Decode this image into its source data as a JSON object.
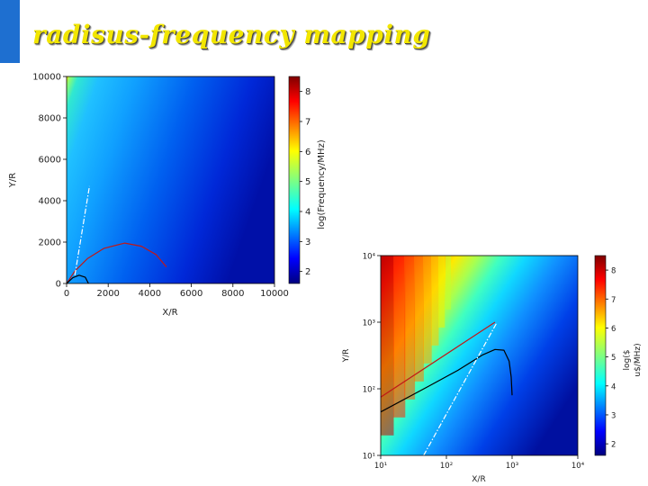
{
  "slide": {
    "title": "radisus-frequency mapping",
    "title_color": "#f2e600",
    "accent_color": "#1e6fd0"
  },
  "chart_data": [
    {
      "type": "heatmap",
      "title": "",
      "xlabel": "X/R",
      "ylabel": "Y/R",
      "xscale": "linear",
      "yscale": "linear",
      "xlim": [
        0,
        10000
      ],
      "ylim": [
        0,
        10000
      ],
      "xticks": [
        "0",
        "2000",
        "4000",
        "6000",
        "8000",
        "10000"
      ],
      "yticks": [
        "0",
        "2000",
        "4000",
        "6000",
        "8000",
        "10000"
      ],
      "colorbar": {
        "label": "log(Frequency/MHz)",
        "ticks": [
          "2",
          "3",
          "4",
          "5",
          "6",
          "7",
          "8"
        ],
        "range": [
          1.6,
          8.5
        ],
        "colormap": "jet"
      },
      "lines": [
        {
          "color": "#c01818",
          "style": "solid",
          "points": [
            [
              0,
              0
            ],
            [
              400,
              600
            ],
            [
              1000,
              1200
            ],
            [
              1800,
              1700
            ],
            [
              2800,
              1950
            ],
            [
              3600,
              1800
            ],
            [
              4300,
              1400
            ],
            [
              4800,
              800
            ]
          ]
        },
        {
          "color": "#000000",
          "style": "solid",
          "points": [
            [
              0,
              0
            ],
            [
              300,
              280
            ],
            [
              600,
              400
            ],
            [
              900,
              300
            ],
            [
              1050,
              0
            ]
          ]
        },
        {
          "color": "#ffffff",
          "style": "dash-dot",
          "points": [
            [
              400,
              400
            ],
            [
              1100,
              4700
            ]
          ]
        }
      ],
      "grid": false
    },
    {
      "type": "heatmap",
      "title": "",
      "xlabel": "X/R",
      "ylabel": "Y/R",
      "xscale": "log",
      "yscale": "log",
      "xlim": [
        10,
        10000
      ],
      "ylim": [
        10,
        10000
      ],
      "xticks": [
        "10¹",
        "10²",
        "10³",
        "10⁴"
      ],
      "yticks": [
        "10¹",
        "10²",
        "10³",
        "10⁴"
      ],
      "colorbar": {
        "label": "log($",
        "label2": "u$/MHz)",
        "ticks": [
          "2",
          "3",
          "4",
          "5",
          "6",
          "7",
          "8"
        ],
        "range": [
          1.6,
          8.5
        ],
        "colormap": "jet"
      },
      "lines": [
        {
          "color": "#c01818",
          "style": "solid",
          "points": [
            [
              10,
              75
            ],
            [
              550,
              1000
            ]
          ]
        },
        {
          "color": "#000000",
          "style": "solid",
          "points": [
            [
              10,
              45
            ],
            [
              50,
              105
            ],
            [
              150,
              190
            ],
            [
              350,
              320
            ],
            [
              550,
              390
            ],
            [
              750,
              380
            ],
            [
              900,
              260
            ],
            [
              970,
              150
            ],
            [
              1000,
              80
            ]
          ]
        },
        {
          "color": "#ffffff",
          "style": "dash-dot",
          "points": [
            [
              45,
              10
            ],
            [
              590,
              1000
            ]
          ]
        }
      ],
      "grid": false
    }
  ]
}
